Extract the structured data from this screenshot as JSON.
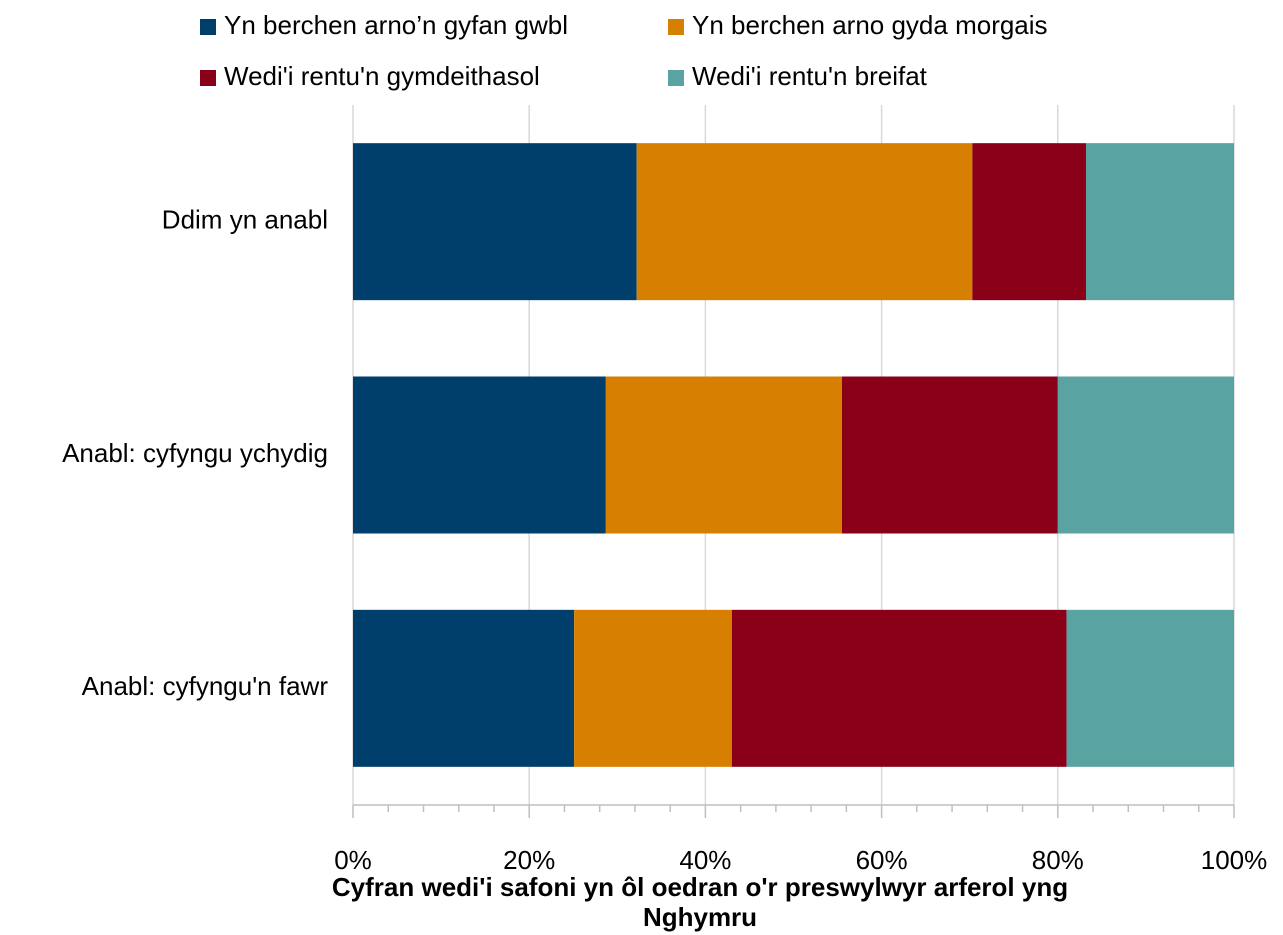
{
  "chart_data": {
    "type": "stacked_bar_horizontal",
    "categories": [
      "Ddim yn anabl",
      "Anabl: cyfyngu ychydig",
      "Anabl: cyfyngu'n fawr"
    ],
    "series": [
      {
        "name": "Yn berchen arno’n gyfan gwbl",
        "color": "#003f6b",
        "values": [
          32.2,
          28.7,
          25.1
        ]
      },
      {
        "name": "Yn berchen arno gyda morgais",
        "color": "#d67f00",
        "values": [
          38.1,
          26.8,
          17.9
        ]
      },
      {
        "name": "Wedi'i rentu'n gymdeithasol",
        "color": "#8a0019",
        "values": [
          12.9,
          24.5,
          38.0
        ]
      },
      {
        "name": "Wedi'i rentu'n breifat",
        "color": "#5aa3a3",
        "values": [
          16.8,
          20.0,
          19.0
        ]
      }
    ],
    "xlabel": "Cyfran wedi'i safoni yn ôl oedran o'r preswylwyr arferol yng Nghymru",
    "xlim": [
      0,
      100
    ],
    "xticks": [
      {
        "value": 0,
        "label": "0%"
      },
      {
        "value": 20,
        "label": "20%"
      },
      {
        "value": 40,
        "label": "40%"
      },
      {
        "value": 60,
        "label": "60%"
      },
      {
        "value": 80,
        "label": "80%"
      },
      {
        "value": 100,
        "label": "100%"
      }
    ],
    "xminorticks": [
      4,
      8,
      12,
      16,
      24,
      28,
      32,
      36,
      44,
      48,
      52,
      56,
      64,
      68,
      72,
      76,
      84,
      88,
      92,
      96
    ],
    "grid": true,
    "legend": "top"
  }
}
